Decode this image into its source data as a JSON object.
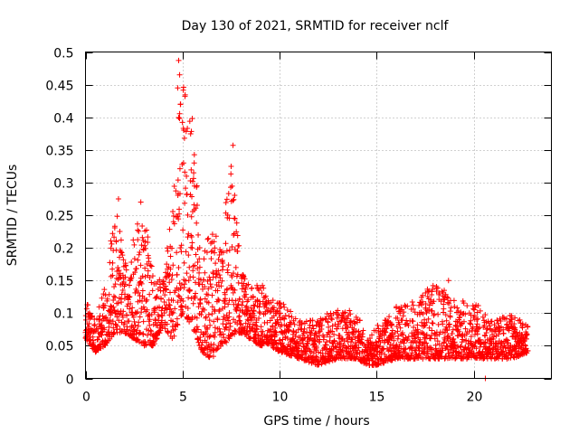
{
  "chart_data": {
    "type": "scatter",
    "title": "Day 130 of 2021, SRMTID for receiver nclf",
    "xlabel": "GPS time / hours",
    "ylabel": "SRMTID / TECUs",
    "xlim": [
      0,
      24
    ],
    "ylim": [
      0,
      0.5
    ],
    "x_ticks": [
      0,
      5,
      10,
      15,
      20
    ],
    "x_tick_labels": [
      "0",
      "5",
      "10",
      "15",
      "20"
    ],
    "y_ticks": [
      0,
      0.05,
      0.1,
      0.15,
      0.2,
      0.25,
      0.3,
      0.35,
      0.4,
      0.45,
      0.5
    ],
    "y_tick_labels": [
      "0",
      "0.05",
      "0.1",
      "0.15",
      "0.2",
      "0.25",
      "0.3",
      "0.35",
      "0.4",
      "0.45",
      "0.5"
    ],
    "grid": true,
    "marker": "plus",
    "color": "#ff0000",
    "series": [
      {
        "name": "SRMTID",
        "envelope": {
          "description": "approximate upper/lower envelope of the dense point cloud, data units",
          "x": [
            0,
            0.5,
            1.0,
            1.5,
            2.0,
            2.5,
            3.0,
            3.5,
            4.0,
            4.5,
            5.0,
            5.5,
            6.0,
            6.5,
            7.0,
            7.5,
            8.0,
            8.5,
            9.0,
            9.5,
            10.0,
            11.0,
            12.0,
            13.0,
            14.0,
            14.5,
            15.0,
            16.0,
            17.0,
            18.0,
            19.0,
            20.0,
            21.0,
            22.0,
            22.8
          ],
          "low": [
            0.06,
            0.04,
            0.05,
            0.07,
            0.07,
            0.06,
            0.05,
            0.05,
            0.08,
            0.06,
            0.1,
            0.08,
            0.04,
            0.03,
            0.05,
            0.06,
            0.07,
            0.06,
            0.05,
            0.05,
            0.04,
            0.03,
            0.02,
            0.03,
            0.03,
            0.02,
            0.02,
            0.03,
            0.03,
            0.03,
            0.03,
            0.03,
            0.03,
            0.03,
            0.04
          ],
          "high": [
            0.12,
            0.09,
            0.14,
            0.27,
            0.19,
            0.22,
            0.27,
            0.16,
            0.15,
            0.27,
            0.49,
            0.4,
            0.18,
            0.24,
            0.2,
            0.36,
            0.17,
            0.14,
            0.15,
            0.12,
            0.12,
            0.09,
            0.09,
            0.11,
            0.1,
            0.06,
            0.08,
            0.11,
            0.12,
            0.15,
            0.12,
            0.12,
            0.09,
            0.1,
            0.08
          ]
        },
        "notable_points": [
          {
            "x": 4.8,
            "y": 0.487
          },
          {
            "x": 4.85,
            "y": 0.465
          },
          {
            "x": 4.75,
            "y": 0.445
          },
          {
            "x": 4.9,
            "y": 0.42
          },
          {
            "x": 5.5,
            "y": 0.398
          },
          {
            "x": 7.6,
            "y": 0.357
          },
          {
            "x": 5.6,
            "y": 0.33
          },
          {
            "x": 1.7,
            "y": 0.275
          },
          {
            "x": 2.85,
            "y": 0.27
          },
          {
            "x": 18.7,
            "y": 0.15
          },
          {
            "x": 20.6,
            "y": 0.0
          }
        ]
      }
    ]
  }
}
